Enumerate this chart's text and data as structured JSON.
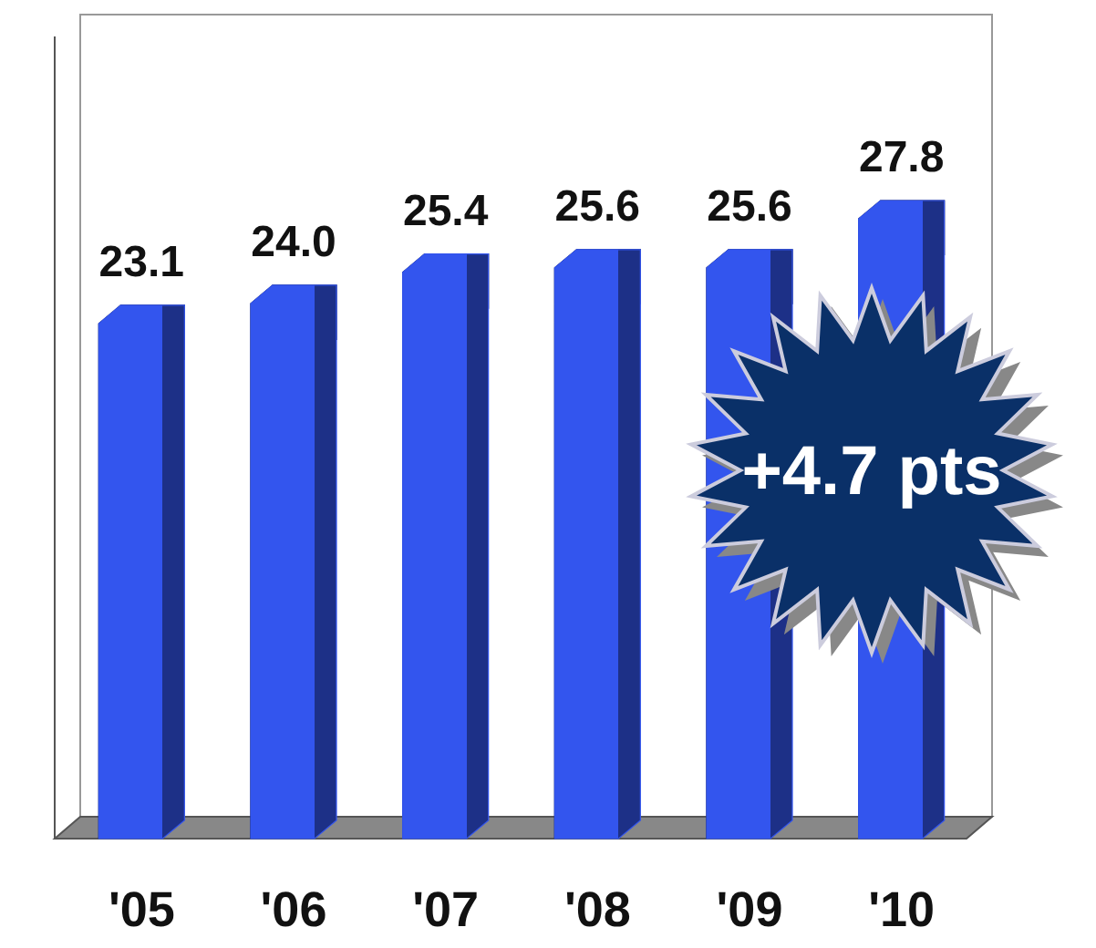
{
  "chart_data": {
    "type": "bar",
    "categories": [
      "'05",
      "'06",
      "'07",
      "'08",
      "'09",
      "'10"
    ],
    "values": [
      23.1,
      24.0,
      25.4,
      25.6,
      25.6,
      27.8
    ],
    "color": "#3355ee",
    "relative": false,
    "value_labels": [
      "23.1",
      "24.0",
      "25.4",
      "25.6",
      "25.6",
      "27.8"
    ],
    "annotations": [
      "+4.7 pts"
    ]
  }
}
